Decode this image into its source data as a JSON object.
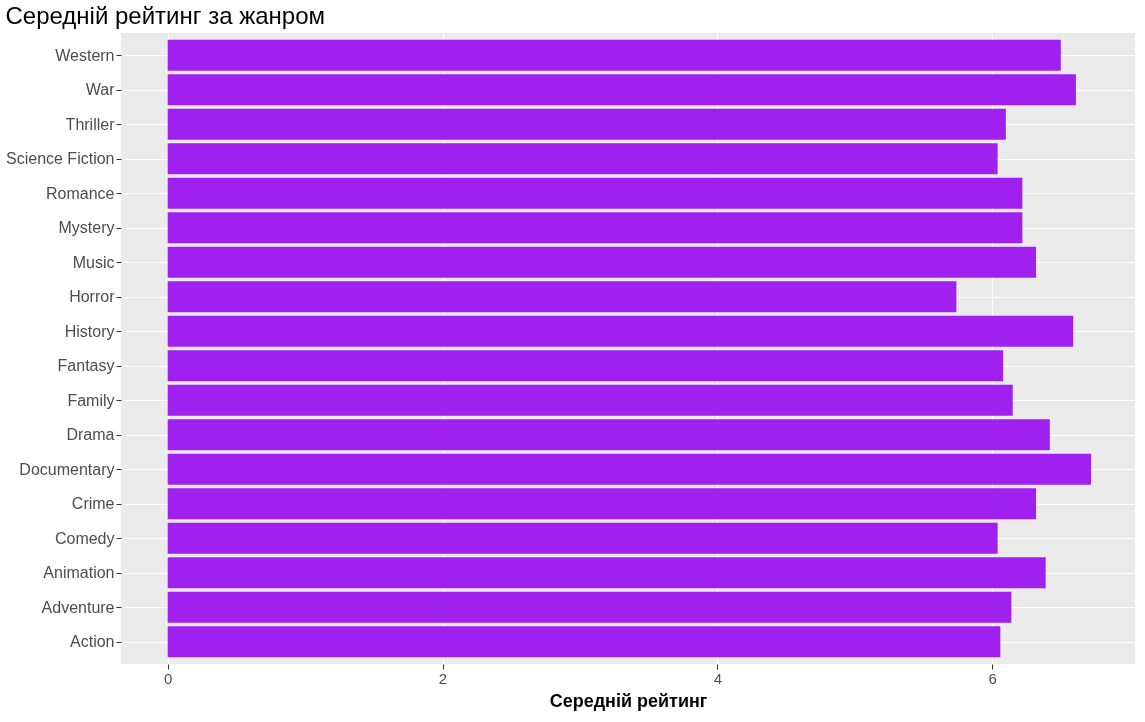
{
  "chart_data": {
    "type": "bar",
    "orientation": "horizontal",
    "title": "Середній рейтинг за жанром",
    "xlabel": "Середній рейтинг",
    "categories": [
      "Western",
      "War",
      "Thriller",
      "Science Fiction",
      "Romance",
      "Mystery",
      "Music",
      "Horror",
      "History",
      "Fantasy",
      "Family",
      "Drama",
      "Documentary",
      "Crime",
      "Comedy",
      "Animation",
      "Adventure",
      "Action"
    ],
    "values": [
      6.5,
      6.61,
      6.1,
      6.04,
      6.22,
      6.22,
      6.32,
      5.74,
      6.59,
      6.08,
      6.15,
      6.42,
      6.72,
      6.32,
      6.04,
      6.39,
      6.14,
      6.06
    ],
    "color": "#a020f0",
    "xlim": [
      -0.34,
      7.04
    ],
    "xticks": [
      0,
      2,
      4,
      6
    ],
    "grid": true
  }
}
